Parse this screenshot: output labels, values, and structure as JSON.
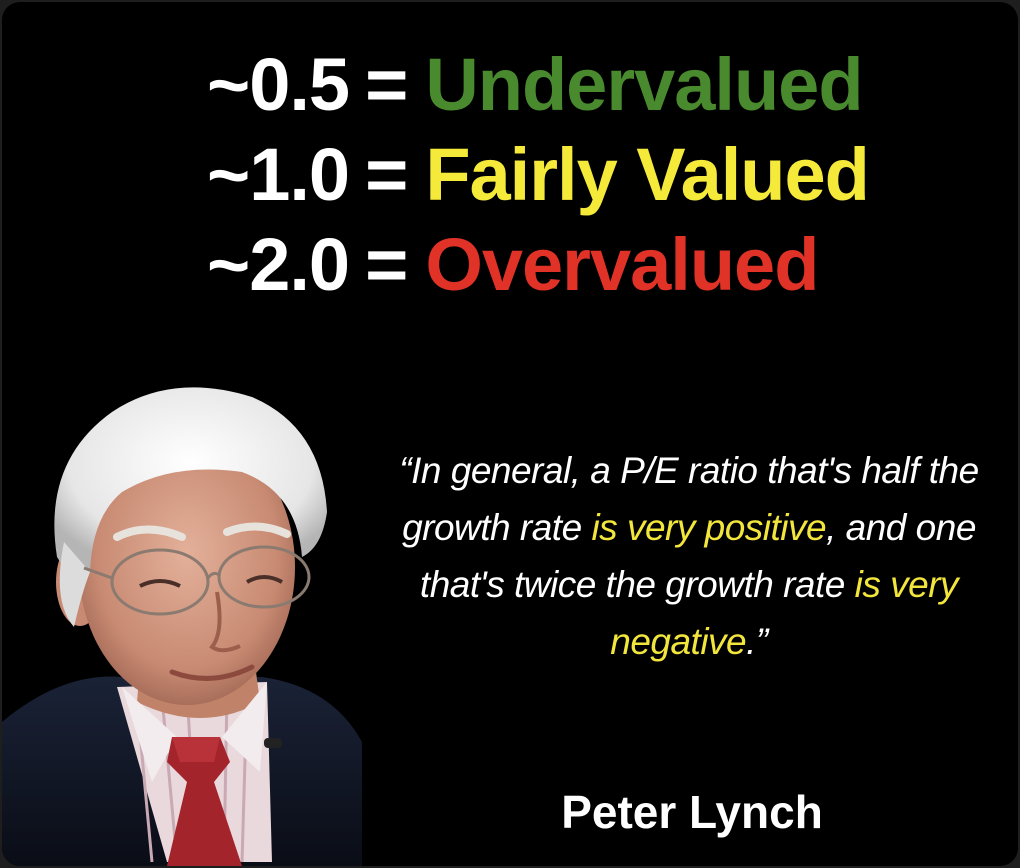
{
  "scale": [
    {
      "value": "~0.5",
      "equals": "=",
      "label": "Undervalued",
      "color": "#4a8a2e"
    },
    {
      "value": "~1.0",
      "equals": "=",
      "label": "Fairly Valued",
      "color": "#f5ea3a"
    },
    {
      "value": "~2.0",
      "equals": "=",
      "label": "Overvalued",
      "color": "#e03226"
    }
  ],
  "quote": {
    "open_mark": "“",
    "part1": "In general, a P/E ratio that's half the growth rate ",
    "highlight1": "is very positive",
    "part2": ", and one that's twice the growth rate ",
    "highlight2": "is very negative",
    "part3": ".",
    "close_mark": "”"
  },
  "author": "Peter Lynch",
  "colors": {
    "background": "#000000",
    "highlight": "#f2e63c"
  }
}
